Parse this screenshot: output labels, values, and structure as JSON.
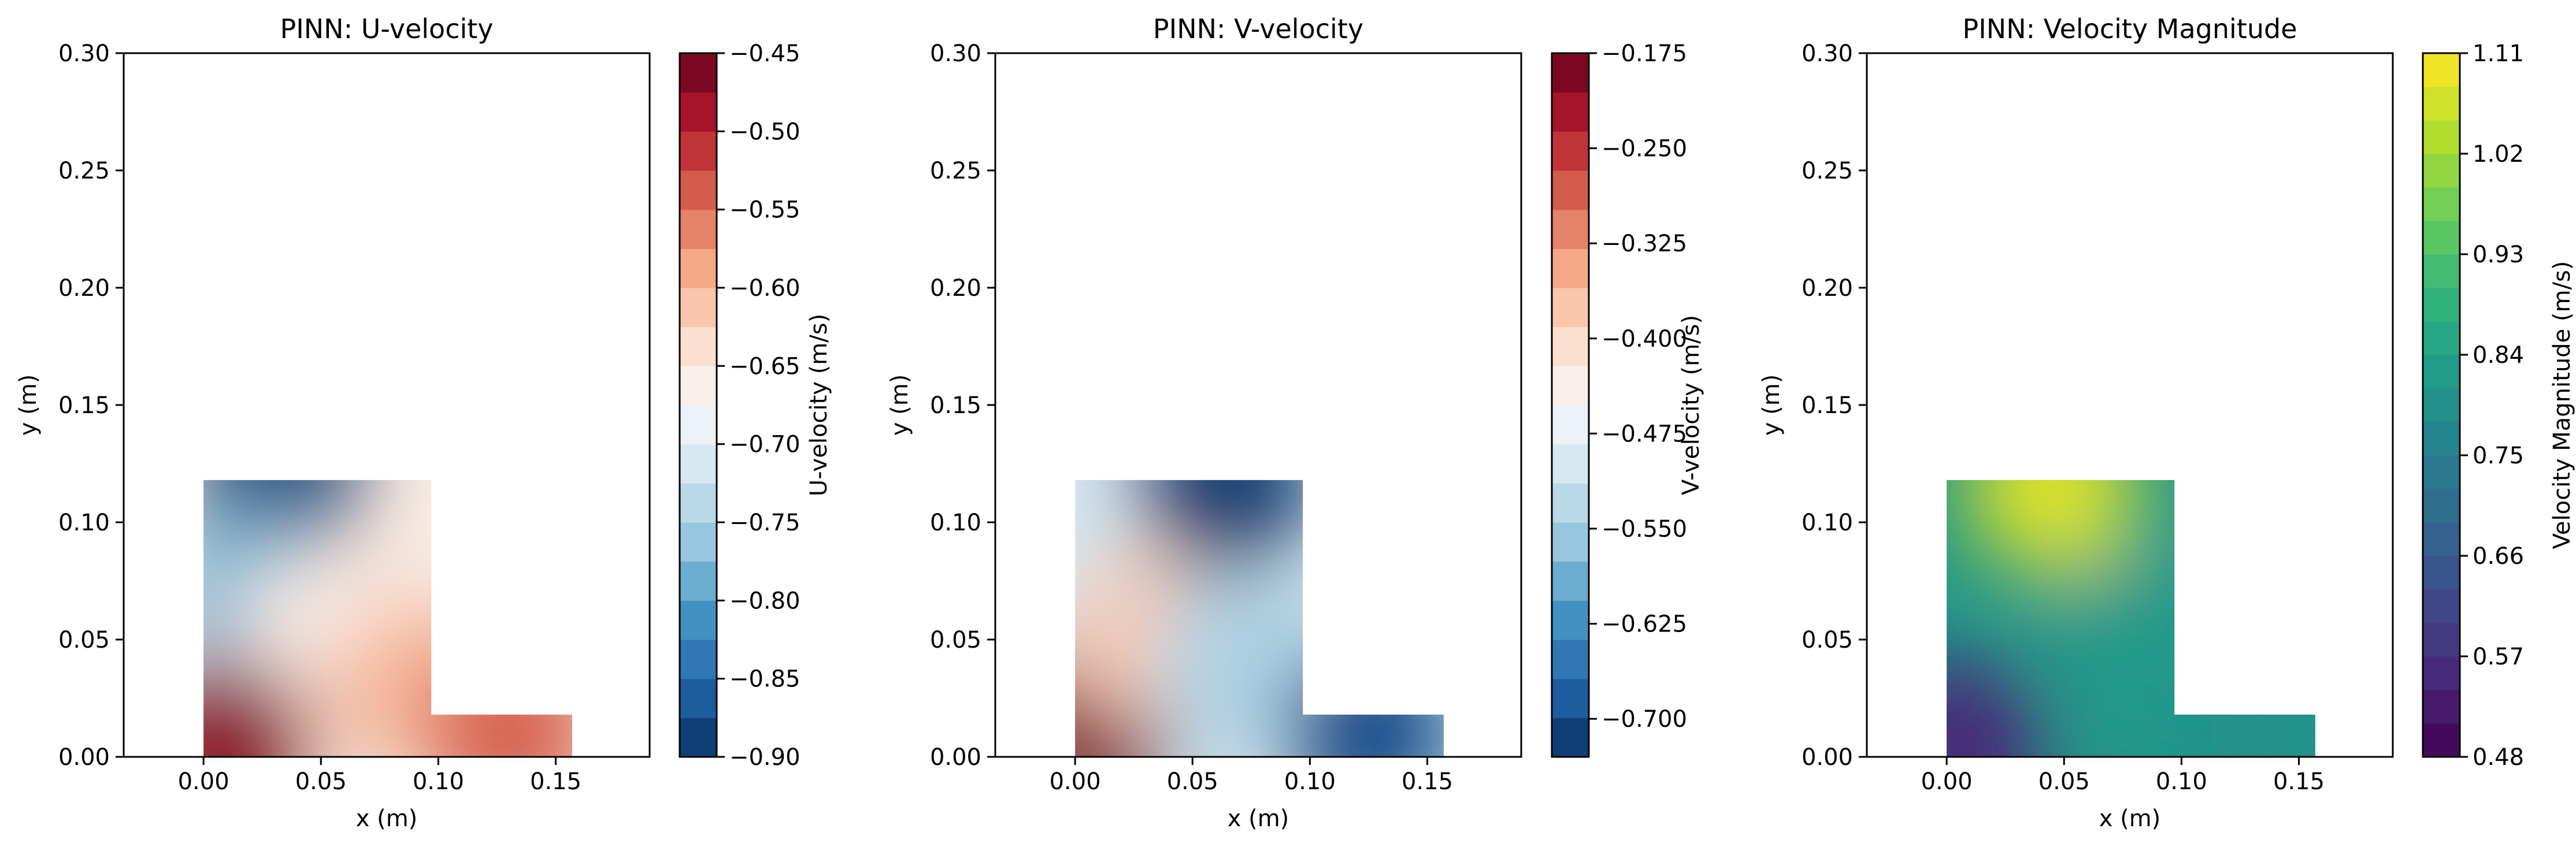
{
  "chart_data": [
    {
      "type": "heatmap",
      "title": "PINN: U-velocity",
      "xlabel": "x (m)",
      "ylabel": "y (m)",
      "xlim": [
        -0.034,
        0.19
      ],
      "ylim": [
        0.0,
        0.3
      ],
      "xticks": [
        "0.00",
        "0.05",
        "0.10",
        "0.15"
      ],
      "yticks": [
        "0.00",
        "0.05",
        "0.10",
        "0.15",
        "0.20",
        "0.25",
        "0.30"
      ],
      "domain_shape": {
        "vertical_leg": {
          "x": [
            0.0,
            0.097
          ],
          "y": [
            0.0,
            0.118
          ]
        },
        "horizontal_leg": {
          "x": [
            0.097,
            0.157
          ],
          "y": [
            0.0,
            0.018
          ]
        }
      },
      "colormap": "RdBu_r",
      "colorbar": {
        "label": "U-velocity (m/s)",
        "min": -0.9,
        "max": -0.45,
        "levels": 18,
        "ticks": [
          "−0.45",
          "−0.50",
          "−0.55",
          "−0.60",
          "−0.65",
          "−0.70",
          "−0.75",
          "−0.80",
          "−0.85",
          "−0.90"
        ]
      },
      "field_samples": [
        {
          "x": 0.03,
          "y": 0.115,
          "value": -0.89
        },
        {
          "x": 0.02,
          "y": 0.07,
          "value": -0.78
        },
        {
          "x": 0.05,
          "y": 0.05,
          "value": -0.66
        },
        {
          "x": 0.09,
          "y": 0.03,
          "value": -0.6
        },
        {
          "x": 0.01,
          "y": 0.005,
          "value": -0.47
        },
        {
          "x": 0.13,
          "y": 0.01,
          "value": -0.54
        }
      ]
    },
    {
      "type": "heatmap",
      "title": "PINN: V-velocity",
      "xlabel": "x (m)",
      "ylabel": "y (m)",
      "xlim": [
        -0.034,
        0.19
      ],
      "ylim": [
        0.0,
        0.3
      ],
      "xticks": [
        "0.00",
        "0.05",
        "0.10",
        "0.15"
      ],
      "yticks": [
        "0.00",
        "0.05",
        "0.10",
        "0.15",
        "0.20",
        "0.25",
        "0.30"
      ],
      "domain_shape": {
        "vertical_leg": {
          "x": [
            0.0,
            0.097
          ],
          "y": [
            0.0,
            0.118
          ]
        },
        "horizontal_leg": {
          "x": [
            0.097,
            0.157
          ],
          "y": [
            0.0,
            0.018
          ]
        }
      },
      "colormap": "RdBu_r",
      "colorbar": {
        "label": "V-velocity (m/s)",
        "min": -0.73,
        "max": -0.175,
        "levels": 18,
        "ticks": [
          "−0.175",
          "−0.250",
          "−0.325",
          "−0.400",
          "−0.475",
          "−0.550",
          "−0.625",
          "−0.700"
        ]
      },
      "field_samples": [
        {
          "x": 0.065,
          "y": 0.115,
          "value": -0.72
        },
        {
          "x": 0.005,
          "y": 0.01,
          "value": -0.19
        },
        {
          "x": 0.03,
          "y": 0.05,
          "value": -0.38
        },
        {
          "x": 0.07,
          "y": 0.04,
          "value": -0.54
        },
        {
          "x": 0.125,
          "y": 0.01,
          "value": -0.7
        }
      ]
    },
    {
      "type": "heatmap",
      "title": "PINN: Velocity Magnitude",
      "xlabel": "x (m)",
      "ylabel": "y (m)",
      "xlim": [
        -0.034,
        0.19
      ],
      "ylim": [
        0.0,
        0.3
      ],
      "xticks": [
        "0.00",
        "0.05",
        "0.10",
        "0.15"
      ],
      "yticks": [
        "0.00",
        "0.05",
        "0.10",
        "0.15",
        "0.20",
        "0.25",
        "0.30"
      ],
      "domain_shape": {
        "vertical_leg": {
          "x": [
            0.0,
            0.097
          ],
          "y": [
            0.0,
            0.118
          ]
        },
        "horizontal_leg": {
          "x": [
            0.097,
            0.157
          ],
          "y": [
            0.0,
            0.018
          ]
        }
      },
      "colormap": "viridis",
      "colorbar": {
        "label": "Velocity Magnitude (m/s)",
        "min": 0.48,
        "max": 1.11,
        "levels": 21,
        "ticks": [
          "1.11",
          "1.02",
          "0.93",
          "0.84",
          "0.75",
          "0.66",
          "0.57",
          "0.48"
        ]
      },
      "field_samples": [
        {
          "x": 0.045,
          "y": 0.115,
          "value": 1.08
        },
        {
          "x": 0.005,
          "y": 0.005,
          "value": 0.55
        },
        {
          "x": 0.08,
          "y": 0.05,
          "value": 0.82
        },
        {
          "x": 0.13,
          "y": 0.01,
          "value": 0.8
        }
      ]
    }
  ]
}
